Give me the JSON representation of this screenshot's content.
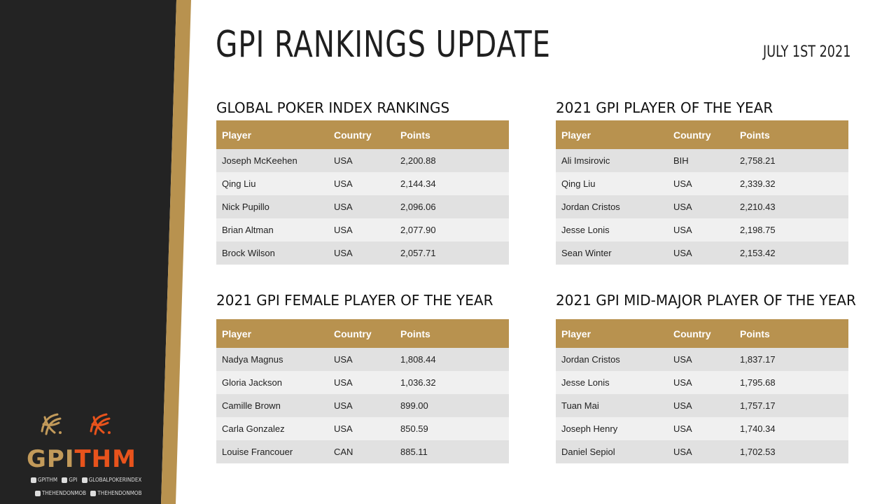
{
  "header": {
    "title": "GPI RANKINGS UPDATE",
    "date": "JULY 1ST 2021"
  },
  "columns": {
    "player": "Player",
    "country": "Country",
    "points": "Points"
  },
  "sections": [
    {
      "title": "GLOBAL POKER INDEX RANKINGS",
      "rows": [
        {
          "player": "Joseph McKeehen",
          "country": "USA",
          "points": "2,200.88"
        },
        {
          "player": "Qing Liu",
          "country": "USA",
          "points": "2,144.34"
        },
        {
          "player": "Nick Pupillo",
          "country": "USA",
          "points": "2,096.06"
        },
        {
          "player": "Brian Altman",
          "country": "USA",
          "points": "2,077.90"
        },
        {
          "player": "Brock Wilson",
          "country": "USA",
          "points": "2,057.71"
        }
      ]
    },
    {
      "title": "2021 GPI PLAYER OF THE YEAR",
      "rows": [
        {
          "player": "Ali Imsirovic",
          "country": "BIH",
          "points": "2,758.21"
        },
        {
          "player": "Qing Liu",
          "country": "USA",
          "points": "2,339.32"
        },
        {
          "player": "Jordan Cristos",
          "country": "USA",
          "points": "2,210.43"
        },
        {
          "player": "Jesse Lonis",
          "country": "USA",
          "points": "2,198.75"
        },
        {
          "player": "Sean Winter",
          "country": "USA",
          "points": "2,153.42"
        }
      ]
    },
    {
      "title": "2021 GPI FEMALE PLAYER OF THE YEAR",
      "rows": [
        {
          "player": "Nadya Magnus",
          "country": "USA",
          "points": "1,808.44"
        },
        {
          "player": "Gloria Jackson",
          "country": "USA",
          "points": "1,036.32"
        },
        {
          "player": "Camille Brown",
          "country": "USA",
          "points": "899.00"
        },
        {
          "player": "Carla Gonzalez",
          "country": "USA",
          "points": "850.59"
        },
        {
          "player": "Louise Francouer",
          "country": "CAN",
          "points": "885.11"
        }
      ]
    },
    {
      "title": "2021 GPI MID-MAJOR PLAYER OF THE YEAR",
      "rows": [
        {
          "player": "Jordan Cristos",
          "country": "USA",
          "points": "1,837.17"
        },
        {
          "player": "Jesse Lonis",
          "country": "USA",
          "points": "1,795.68"
        },
        {
          "player": "Tuan Mai",
          "country": "USA",
          "points": "1,757.17"
        },
        {
          "player": "Joseph Henry",
          "country": "USA",
          "points": "1,740.34"
        },
        {
          "player": "Daniel Sepiol",
          "country": "USA",
          "points": "1,702.53"
        }
      ]
    }
  ],
  "branding": {
    "logo_gpi": "GPI",
    "logo_thm": "THM",
    "social_row1": [
      "GPITHM",
      "GPI",
      "GLOBALPOKERINDEX"
    ],
    "social_row2": [
      "THEHENDONMOB",
      "THEHENDONMOB"
    ],
    "colors": {
      "gold": "#b8924f",
      "orange": "#e8531c",
      "dark": "#232323"
    }
  }
}
